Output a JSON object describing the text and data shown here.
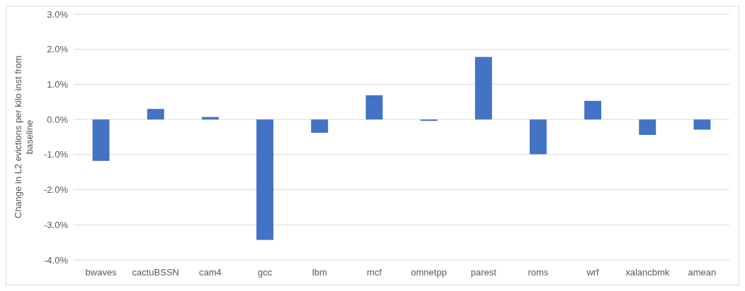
{
  "chart_data": {
    "type": "bar",
    "ylabel": "Change in L2 evictions per kilo inst from baseline",
    "categories": [
      "bwaves",
      "cactuBSSN",
      "cam4",
      "gcc",
      "lbm",
      "mcf",
      "omnetpp",
      "parest",
      "roms",
      "wrf",
      "xalancbmk",
      "amean"
    ],
    "values": [
      -1.18,
      0.3,
      0.07,
      -3.43,
      -0.38,
      0.69,
      -0.04,
      1.78,
      -0.99,
      0.53,
      -0.44,
      -0.29
    ],
    "color": "#4472c4",
    "ylim": [
      -4,
      3
    ],
    "yticks": [
      {
        "value": -4,
        "label": "-4.0%"
      },
      {
        "value": -3,
        "label": "-3.0%"
      },
      {
        "value": -2,
        "label": "-2.0%"
      },
      {
        "value": -1,
        "label": "-1.0%"
      },
      {
        "value": 0,
        "label": "0.0%"
      },
      {
        "value": 1,
        "label": "1.0%"
      },
      {
        "value": 2,
        "label": "2.0%"
      },
      {
        "value": 3,
        "label": "3.0%"
      }
    ],
    "grid": "y"
  }
}
